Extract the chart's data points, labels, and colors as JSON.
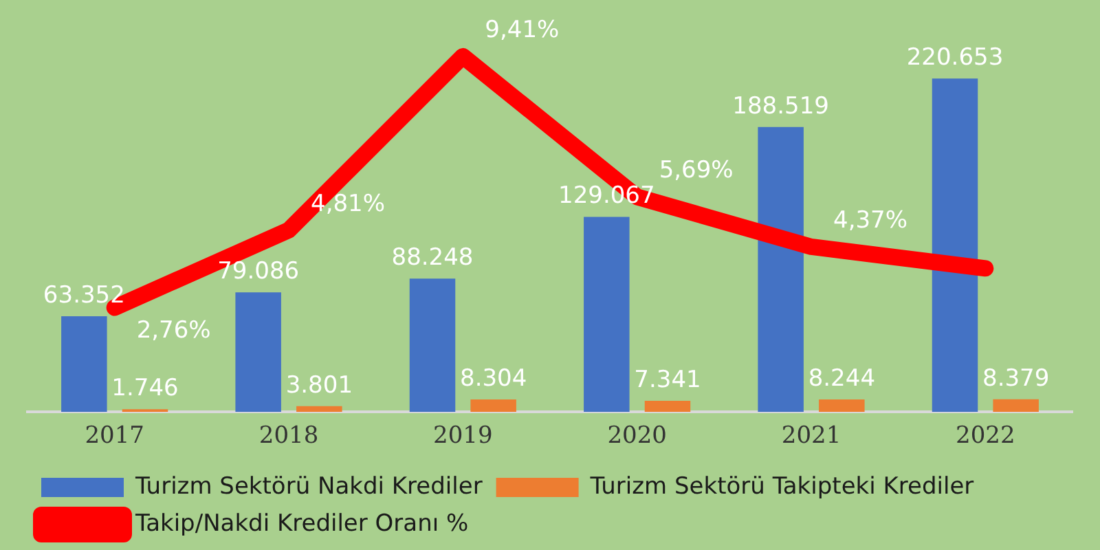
{
  "chart_data": {
    "type": "bar",
    "categories": [
      "2017",
      "2018",
      "2019",
      "2020",
      "2021",
      "2022"
    ],
    "series": [
      {
        "name": "Turizm Sektörü Nakdi Krediler",
        "color": "#4472c4",
        "values": [
          63352,
          79086,
          88248,
          129067,
          188519,
          220653
        ],
        "value_labels": [
          "63.352",
          "79.086",
          "88.248",
          "129.067",
          "188.519",
          "220.653"
        ]
      },
      {
        "name": "Turizm Sektörü Takipteki Krediler",
        "color": "#ed7d31",
        "values": [
          1746,
          3801,
          8304,
          7341,
          8244,
          8379
        ],
        "value_labels": [
          "1.746",
          "3.801",
          "8.304",
          "7.341",
          "8.244",
          "8.379"
        ]
      },
      {
        "name": "Takip/Nakdi Krediler Oranı %",
        "type": "line",
        "axis": "y2",
        "color": "#ff0000",
        "values": [
          2.76,
          4.81,
          9.41,
          5.69,
          4.37,
          3.8
        ],
        "value_labels": [
          "2,76%",
          "4,81%",
          "9,41%",
          "5,69%",
          "4,37%",
          null
        ]
      }
    ],
    "legend": "bottom",
    "grid": false
  }
}
